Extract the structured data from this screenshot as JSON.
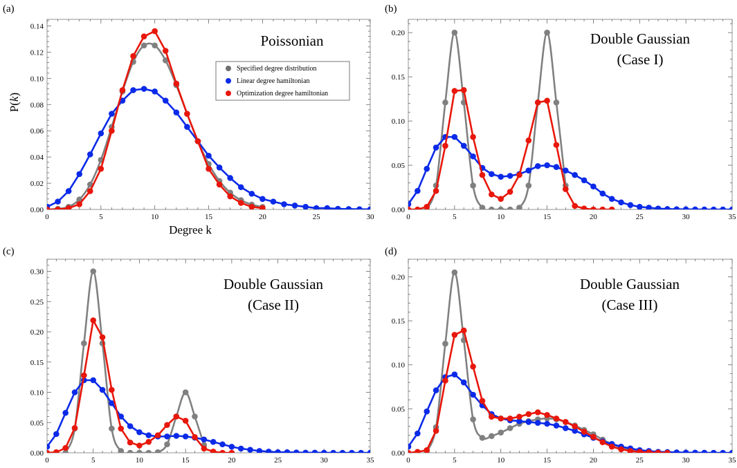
{
  "legend": {
    "entries": [
      {
        "label": "Specified degree distribution",
        "color": "#707070"
      },
      {
        "label": "Linear degree hamiltonian",
        "color": "#0b2ae8"
      },
      {
        "label": "Optimization degree hamiltonian",
        "color": "#e8170b"
      }
    ]
  },
  "axes_text": {
    "ylabel_prefix": "P(",
    "ylabel_var": "k",
    "ylabel_suffix": ")",
    "xlabel": "Degree k"
  },
  "colors": {
    "specified": "#808080",
    "specified_marker": "#808080",
    "linear": "#0b2ae8",
    "optimization": "#e8170b"
  },
  "chart_data": [
    {
      "type": "line",
      "panel_label": "(a)",
      "title": [
        "Poissonian"
      ],
      "xlim": [
        0,
        30
      ],
      "ylim": [
        0,
        0.145
      ],
      "xticks": [
        0,
        5,
        10,
        15,
        20,
        25,
        30
      ],
      "yticks": [
        0.0,
        0.02,
        0.04,
        0.06,
        0.08,
        0.1,
        0.12,
        0.14
      ],
      "ytick_labels": [
        "0.00",
        "0.02",
        "0.04",
        "0.06",
        "0.08",
        "0.10",
        "0.12",
        "0.14"
      ],
      "series": [
        {
          "name": "Specified degree distribution",
          "curve": true,
          "x": [
            0,
            1,
            2,
            3,
            4,
            5,
            6,
            7,
            8,
            9,
            10,
            11,
            12,
            13,
            14,
            15,
            16,
            17,
            18,
            19,
            20
          ],
          "values": [
            0.0,
            0.0005,
            0.002,
            0.0076,
            0.019,
            0.0378,
            0.063,
            0.09,
            0.1126,
            0.1251,
            0.1251,
            0.1137,
            0.0948,
            0.0729,
            0.0521,
            0.0347,
            0.0217,
            0.0128,
            0.0071,
            0.0037,
            0.0019
          ]
        },
        {
          "name": "Linear degree hamiltonian",
          "x": [
            0,
            1,
            2,
            3,
            4,
            5,
            6,
            7,
            8,
            9,
            10,
            11,
            12,
            13,
            14,
            15,
            16,
            17,
            18,
            19,
            20,
            21,
            22,
            23,
            24,
            25,
            26,
            27,
            28,
            29,
            30
          ],
          "values": [
            0.002,
            0.006,
            0.014,
            0.027,
            0.042,
            0.058,
            0.073,
            0.083,
            0.091,
            0.092,
            0.09,
            0.083,
            0.074,
            0.063,
            0.052,
            0.041,
            0.032,
            0.024,
            0.017,
            0.012,
            0.008,
            0.006,
            0.004,
            0.003,
            0.002,
            0.001,
            0.001,
            0.0005,
            0.0003,
            0.0002,
            0.0001
          ]
        },
        {
          "name": "Optimization degree hamiltonian",
          "x": [
            0,
            1,
            2,
            3,
            4,
            5,
            6,
            7,
            8,
            9,
            10,
            11,
            12,
            13,
            14,
            15,
            16,
            17,
            18,
            19,
            20
          ],
          "values": [
            0.0,
            0.0,
            0.001,
            0.004,
            0.014,
            0.031,
            0.06,
            0.091,
            0.117,
            0.132,
            0.136,
            0.121,
            0.096,
            0.073,
            0.052,
            0.031,
            0.019,
            0.01,
            0.005,
            0.002,
            0.001
          ]
        }
      ]
    },
    {
      "type": "line",
      "panel_label": "(b)",
      "title": [
        "Double Gaussian",
        "(Case I)"
      ],
      "xlim": [
        0,
        35
      ],
      "ylim": [
        0,
        0.215
      ],
      "xticks": [
        0,
        5,
        10,
        15,
        20,
        25,
        30,
        35
      ],
      "yticks": [
        0.0,
        0.05,
        0.1,
        0.15,
        0.2
      ],
      "ytick_labels": [
        "0.00",
        "0.05",
        "0.10",
        "0.15",
        "0.20"
      ],
      "series": [
        {
          "name": "Specified degree distribution",
          "curve": true,
          "x": [
            2,
            3,
            4,
            5,
            6,
            7,
            8,
            9,
            10,
            11,
            12,
            13,
            14,
            15,
            16,
            17
          ],
          "values": [
            0.0,
            0.027,
            0.121,
            0.2,
            0.121,
            0.027,
            0.002,
            0.0,
            0.0,
            0.0,
            0.002,
            0.027,
            0.121,
            0.2,
            0.121,
            0.027
          ]
        },
        {
          "name": "Linear degree hamiltonian",
          "x": [
            0,
            1,
            2,
            3,
            4,
            5,
            6,
            7,
            8,
            9,
            10,
            11,
            12,
            13,
            14,
            15,
            16,
            17,
            18,
            19,
            20,
            21,
            22,
            23,
            24,
            25,
            26,
            27,
            28,
            29,
            30,
            31,
            32,
            33,
            34,
            35
          ],
          "values": [
            0.006,
            0.021,
            0.046,
            0.07,
            0.082,
            0.082,
            0.072,
            0.06,
            0.047,
            0.04,
            0.037,
            0.038,
            0.04,
            0.044,
            0.049,
            0.05,
            0.048,
            0.044,
            0.039,
            0.033,
            0.026,
            0.018,
            0.012,
            0.008,
            0.005,
            0.003,
            0.002,
            0.001,
            0.0005,
            0.0003,
            0.0002,
            0.0001,
            0.0,
            0.0,
            0.0,
            0.0
          ]
        },
        {
          "name": "Optimization degree hamiltonian",
          "x": [
            0,
            1,
            2,
            3,
            4,
            5,
            6,
            7,
            8,
            9,
            10,
            11,
            12,
            13,
            14,
            15,
            16,
            17,
            18,
            19,
            20,
            21,
            22
          ],
          "values": [
            0.0,
            0.0,
            0.003,
            0.021,
            0.072,
            0.134,
            0.135,
            0.082,
            0.039,
            0.017,
            0.012,
            0.02,
            0.039,
            0.078,
            0.121,
            0.123,
            0.073,
            0.023,
            0.004,
            0.001,
            0.0,
            0.0,
            0.0
          ]
        }
      ]
    },
    {
      "type": "line",
      "panel_label": "(c)",
      "title": [
        "Double Gaussian",
        "(Case II)"
      ],
      "xlim": [
        0,
        35
      ],
      "ylim": [
        0,
        0.32
      ],
      "xticks": [
        0,
        5,
        10,
        15,
        20,
        25,
        30,
        35
      ],
      "yticks": [
        0.0,
        0.05,
        0.1,
        0.15,
        0.2,
        0.25,
        0.3
      ],
      "ytick_labels": [
        "0.00",
        "0.05",
        "0.10",
        "0.15",
        "0.20",
        "0.25",
        "0.30"
      ],
      "series": [
        {
          "name": "Specified degree distribution",
          "curve": true,
          "x": [
            2,
            3,
            4,
            5,
            6,
            7,
            8,
            9,
            10,
            11,
            12,
            13,
            14,
            15,
            16,
            17
          ],
          "values": [
            0.0,
            0.04,
            0.181,
            0.3,
            0.181,
            0.04,
            0.003,
            0.0,
            0.0,
            0.0,
            0.001,
            0.014,
            0.06,
            0.1,
            0.06,
            0.013
          ]
        },
        {
          "name": "Linear degree hamiltonian",
          "x": [
            0,
            1,
            2,
            3,
            4,
            5,
            6,
            7,
            8,
            9,
            10,
            11,
            12,
            13,
            14,
            15,
            16,
            17,
            18,
            19,
            20,
            21,
            22,
            23,
            24,
            25,
            26,
            27,
            28,
            29,
            30,
            31,
            32,
            33,
            34,
            35
          ],
          "values": [
            0.01,
            0.031,
            0.066,
            0.1,
            0.12,
            0.12,
            0.104,
            0.082,
            0.06,
            0.044,
            0.034,
            0.029,
            0.027,
            0.027,
            0.028,
            0.027,
            0.025,
            0.022,
            0.018,
            0.014,
            0.01,
            0.007,
            0.005,
            0.003,
            0.002,
            0.001,
            0.001,
            0.0005,
            0.0003,
            0.0002,
            0.0001,
            0.0,
            0.0,
            0.0,
            0.0,
            0.0
          ]
        },
        {
          "name": "Optimization degree hamiltonian",
          "x": [
            0,
            1,
            2,
            3,
            4,
            5,
            6,
            7,
            8,
            9,
            10,
            11,
            12,
            13,
            14,
            15,
            16,
            17,
            18,
            19,
            20
          ],
          "values": [
            0.0,
            0.001,
            0.008,
            0.041,
            0.128,
            0.219,
            0.191,
            0.104,
            0.04,
            0.017,
            0.012,
            0.018,
            0.029,
            0.046,
            0.06,
            0.053,
            0.026,
            0.007,
            0.002,
            0.0,
            0.0
          ]
        }
      ]
    },
    {
      "type": "line",
      "panel_label": "(d)",
      "title": [
        "Double Gaussian",
        "(Case III)"
      ],
      "xlim": [
        0,
        35
      ],
      "ylim": [
        0,
        0.22
      ],
      "xticks": [
        0,
        5,
        10,
        15,
        20,
        25,
        30,
        35
      ],
      "yticks": [
        0.0,
        0.05,
        0.1,
        0.15,
        0.2
      ],
      "ytick_labels": [
        "0.00",
        "0.05",
        "0.10",
        "0.15",
        "0.20"
      ],
      "series": [
        {
          "name": "Specified degree distribution",
          "curve": true,
          "x": [
            2,
            3,
            4,
            5,
            6,
            7,
            8,
            9,
            10,
            11,
            12,
            13,
            14,
            15,
            16,
            17,
            18,
            19,
            20,
            21,
            22,
            23,
            24,
            25,
            26,
            27,
            28,
            29,
            30
          ],
          "values": [
            0.001,
            0.029,
            0.124,
            0.205,
            0.128,
            0.038,
            0.017,
            0.019,
            0.023,
            0.028,
            0.033,
            0.036,
            0.038,
            0.039,
            0.038,
            0.035,
            0.031,
            0.026,
            0.021,
            0.015,
            0.01,
            0.006,
            0.004,
            0.002,
            0.001,
            0.0005,
            0.0002,
            0.0001,
            0.0
          ]
        },
        {
          "name": "Linear degree hamiltonian",
          "x": [
            0,
            1,
            2,
            3,
            4,
            5,
            6,
            7,
            8,
            9,
            10,
            11,
            12,
            13,
            14,
            15,
            16,
            17,
            18,
            19,
            20,
            21,
            22,
            23,
            24,
            25,
            26,
            27,
            28,
            29,
            30,
            31,
            32,
            33,
            34,
            35
          ],
          "values": [
            0.007,
            0.022,
            0.047,
            0.071,
            0.086,
            0.089,
            0.08,
            0.066,
            0.054,
            0.044,
            0.039,
            0.037,
            0.036,
            0.035,
            0.034,
            0.033,
            0.031,
            0.028,
            0.025,
            0.021,
            0.017,
            0.013,
            0.01,
            0.007,
            0.005,
            0.003,
            0.002,
            0.001,
            0.0008,
            0.0005,
            0.0003,
            0.0002,
            0.0001,
            0.0,
            0.0,
            0.0
          ]
        },
        {
          "name": "Optimization degree hamiltonian",
          "x": [
            0,
            1,
            2,
            3,
            4,
            5,
            6,
            7,
            8,
            9,
            10,
            11,
            12,
            13,
            14,
            15,
            16,
            17,
            18,
            19,
            20,
            21,
            22,
            23,
            24,
            25,
            26,
            27,
            28
          ],
          "values": [
            0.0,
            0.001,
            0.003,
            0.025,
            0.082,
            0.134,
            0.139,
            0.098,
            0.059,
            0.041,
            0.039,
            0.039,
            0.041,
            0.044,
            0.046,
            0.043,
            0.039,
            0.035,
            0.03,
            0.024,
            0.018,
            0.012,
            0.007,
            0.004,
            0.002,
            0.001,
            0.0005,
            0.0002,
            0.0
          ]
        }
      ]
    }
  ]
}
